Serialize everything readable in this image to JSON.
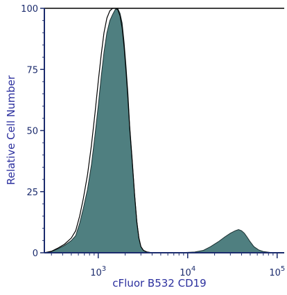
{
  "chart_data": {
    "type": "area",
    "xlabel": "cFluor B532 CD19",
    "ylabel": "Relative Cell Number",
    "x_scale": "log",
    "xlim": [
      250,
      120000
    ],
    "ylim": [
      0,
      100
    ],
    "y_ticks": [
      "0",
      "25",
      "50",
      "75",
      "100"
    ],
    "x_ticks": [
      {
        "base": "10",
        "exp": "3",
        "value": 1000
      },
      {
        "base": "10",
        "exp": "4",
        "value": 10000
      },
      {
        "base": "10",
        "exp": "5",
        "value": 100000
      }
    ],
    "grid": false,
    "series": [
      {
        "role": "stained-filled",
        "points": [
          [
            250,
            0
          ],
          [
            300,
            0.5
          ],
          [
            350,
            1.5
          ],
          [
            420,
            3
          ],
          [
            500,
            5
          ],
          [
            560,
            7
          ],
          [
            620,
            12
          ],
          [
            680,
            18
          ],
          [
            760,
            26
          ],
          [
            840,
            36
          ],
          [
            920,
            48
          ],
          [
            1000,
            60
          ],
          [
            1080,
            72
          ],
          [
            1160,
            82
          ],
          [
            1250,
            90
          ],
          [
            1350,
            95
          ],
          [
            1450,
            97.5
          ],
          [
            1550,
            99.5
          ],
          [
            1650,
            100
          ],
          [
            1750,
            98
          ],
          [
            1850,
            94
          ],
          [
            1950,
            86
          ],
          [
            2050,
            76
          ],
          [
            2150,
            65
          ],
          [
            2250,
            52
          ],
          [
            2400,
            38
          ],
          [
            2550,
            24
          ],
          [
            2700,
            13
          ],
          [
            2850,
            6
          ],
          [
            3000,
            2.5
          ],
          [
            3200,
            1
          ],
          [
            3500,
            0.3
          ],
          [
            4000,
            0
          ],
          [
            8000,
            0
          ],
          [
            12000,
            0.3
          ],
          [
            15000,
            1
          ],
          [
            18000,
            2.5
          ],
          [
            22000,
            4.5
          ],
          [
            26000,
            6.5
          ],
          [
            30000,
            8
          ],
          [
            34000,
            9
          ],
          [
            37000,
            9.5
          ],
          [
            40000,
            9
          ],
          [
            43000,
            8
          ],
          [
            46000,
            6.5
          ],
          [
            50000,
            4.5
          ],
          [
            55000,
            2.5
          ],
          [
            62000,
            1.2
          ],
          [
            70000,
            0.5
          ],
          [
            85000,
            0.1
          ],
          [
            120000,
            0
          ]
        ]
      },
      {
        "role": "unstained-outline",
        "points": [
          [
            250,
            0
          ],
          [
            300,
            0.6
          ],
          [
            350,
            1.8
          ],
          [
            420,
            3.5
          ],
          [
            500,
            6
          ],
          [
            560,
            9
          ],
          [
            620,
            15
          ],
          [
            680,
            22
          ],
          [
            760,
            32
          ],
          [
            840,
            44
          ],
          [
            920,
            57
          ],
          [
            1000,
            70
          ],
          [
            1080,
            81
          ],
          [
            1160,
            90
          ],
          [
            1250,
            96
          ],
          [
            1350,
            99
          ],
          [
            1450,
            100
          ],
          [
            1550,
            100
          ],
          [
            1650,
            99.5
          ],
          [
            1750,
            97
          ],
          [
            1850,
            92
          ],
          [
            1950,
            84
          ],
          [
            2050,
            74
          ],
          [
            2150,
            63
          ],
          [
            2250,
            51
          ],
          [
            2400,
            37
          ],
          [
            2550,
            23.5
          ],
          [
            2700,
            12.5
          ],
          [
            2850,
            6
          ],
          [
            3000,
            2.5
          ],
          [
            3200,
            1
          ],
          [
            3500,
            0.3
          ],
          [
            4000,
            0
          ],
          [
            120000,
            0
          ]
        ]
      }
    ],
    "colors": {
      "fill": "#4f7f80",
      "fill_stroke": "#1a2f30",
      "outline": "#000000",
      "axis": "#1a2a6c",
      "label": "#2b2f9e"
    }
  }
}
